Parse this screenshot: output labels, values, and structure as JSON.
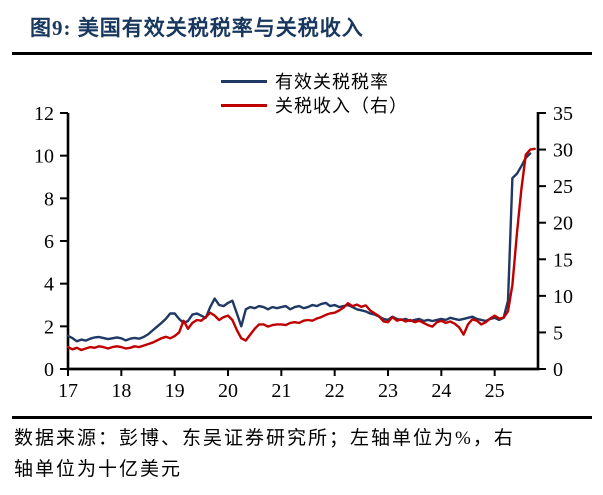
{
  "title": "图9:  美国有效关税税率与关税收入",
  "source": {
    "line1": "数据来源：彭博、东吴证券研究所；左轴单位为%，右",
    "line2": "轴单位为十亿美元"
  },
  "colors": {
    "title_navy": "#17375e",
    "rate_line": "#1f3864",
    "revenue_line": "#c00000",
    "axis": "#000000"
  },
  "chart_data": {
    "type": "line",
    "title": "美国有效关税税率与关税收入",
    "x_ticks": [
      "17",
      "18",
      "19",
      "20",
      "21",
      "22",
      "23",
      "24",
      "25"
    ],
    "x_range_years": [
      2017,
      2025.85
    ],
    "left_axis": {
      "unit": "%",
      "ticks": [
        0,
        2,
        4,
        6,
        8,
        10,
        12
      ],
      "range": [
        0,
        12
      ]
    },
    "right_axis": {
      "unit": "十亿美元",
      "ticks": [
        0,
        5,
        10,
        15,
        20,
        25,
        30,
        35
      ],
      "range": [
        0,
        35
      ]
    },
    "grid": false,
    "legend_position": "top-center",
    "series": [
      {
        "name": "有效关税税率",
        "axis": "left",
        "color": "#1f3864",
        "start_year": 2017.0,
        "step_months": 1,
        "values": [
          1.55,
          1.45,
          1.3,
          1.38,
          1.33,
          1.42,
          1.48,
          1.5,
          1.45,
          1.4,
          1.44,
          1.48,
          1.44,
          1.34,
          1.42,
          1.46,
          1.42,
          1.5,
          1.62,
          1.8,
          1.98,
          2.15,
          2.35,
          2.6,
          2.6,
          2.35,
          2.15,
          2.25,
          2.55,
          2.6,
          2.5,
          2.4,
          2.9,
          3.3,
          3.0,
          2.95,
          3.1,
          3.2,
          2.6,
          2.0,
          2.8,
          2.9,
          2.85,
          2.95,
          2.9,
          2.8,
          2.9,
          2.85,
          2.9,
          2.95,
          2.8,
          2.9,
          2.95,
          2.85,
          2.9,
          3.0,
          2.95,
          3.05,
          3.1,
          2.95,
          3.0,
          2.9,
          2.95,
          3.0,
          2.9,
          2.8,
          2.75,
          2.7,
          2.6,
          2.55,
          2.45,
          2.35,
          2.3,
          2.45,
          2.35,
          2.3,
          2.35,
          2.25,
          2.3,
          2.35,
          2.25,
          2.3,
          2.25,
          2.3,
          2.35,
          2.3,
          2.4,
          2.35,
          2.3,
          2.35,
          2.4,
          2.45,
          2.35,
          2.3,
          2.25,
          2.35,
          2.4,
          2.3,
          2.4,
          3.2,
          8.95,
          9.15,
          9.5,
          9.9,
          10.1
        ]
      },
      {
        "name": "关税收入（右）",
        "axis": "right",
        "color": "#c00000",
        "start_year": 2017.0,
        "step_months": 1,
        "values": [
          3.0,
          2.7,
          2.9,
          2.6,
          2.8,
          3.0,
          2.9,
          3.1,
          3.0,
          2.8,
          3.0,
          3.1,
          3.0,
          2.8,
          2.9,
          3.1,
          3.0,
          3.2,
          3.4,
          3.6,
          3.9,
          4.2,
          4.4,
          4.2,
          4.5,
          5.0,
          6.6,
          5.5,
          6.3,
          6.7,
          6.6,
          7.1,
          7.7,
          7.3,
          6.7,
          7.1,
          7.3,
          6.7,
          5.3,
          4.2,
          3.9,
          4.7,
          5.5,
          6.1,
          6.1,
          5.8,
          6.0,
          6.1,
          6.1,
          6.0,
          6.3,
          6.4,
          6.3,
          6.6,
          6.7,
          6.6,
          6.9,
          7.1,
          7.4,
          7.6,
          7.7,
          8.0,
          8.4,
          9.0,
          8.6,
          8.8,
          8.5,
          8.7,
          8.0,
          7.6,
          7.2,
          6.5,
          6.4,
          7.1,
          6.6,
          6.8,
          6.5,
          6.7,
          6.4,
          6.6,
          6.3,
          6.0,
          5.8,
          6.4,
          6.6,
          6.3,
          6.5,
          6.2,
          5.7,
          4.7,
          6.1,
          6.8,
          6.6,
          6.1,
          6.4,
          6.9,
          7.3,
          6.9,
          7.0,
          7.9,
          11.5,
          18.5,
          24.5,
          29.3,
          30.0,
          30.1
        ]
      }
    ]
  }
}
